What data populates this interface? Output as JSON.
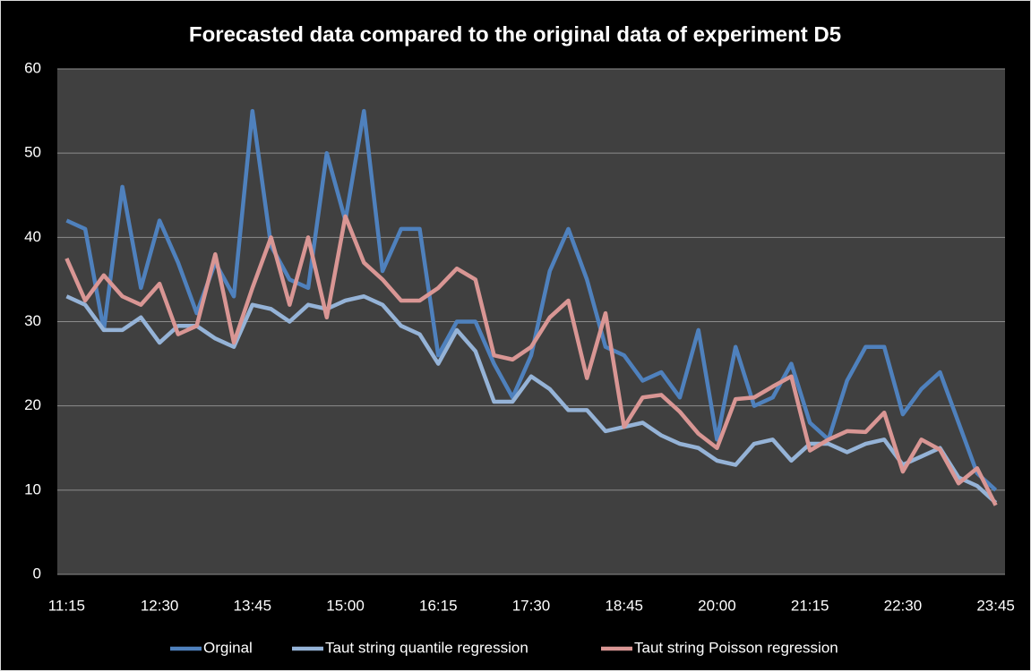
{
  "chart_data": {
    "type": "line",
    "title": "Forecasted data compared to the original data of experiment D5",
    "categories": [
      "11:15",
      null,
      null,
      null,
      null,
      "12:30",
      null,
      null,
      null,
      null,
      "13:45",
      null,
      null,
      null,
      null,
      "15:00",
      null,
      null,
      null,
      null,
      "16:15",
      null,
      null,
      null,
      null,
      "17:30",
      null,
      null,
      null,
      null,
      "18:45",
      null,
      null,
      null,
      null,
      "20:00",
      null,
      null,
      null,
      null,
      "21:15",
      null,
      null,
      null,
      null,
      "22:30",
      null,
      null,
      null,
      null,
      "23:45"
    ],
    "series": [
      {
        "name": "Orginal",
        "color": "#4f81bd",
        "values": [
          42,
          41,
          29,
          46,
          34,
          42,
          37,
          31,
          37,
          33,
          55,
          39,
          35,
          34,
          50,
          42,
          55,
          36,
          41,
          41,
          26,
          30,
          30,
          25,
          21,
          26,
          36,
          41,
          35,
          27,
          26,
          23,
          24,
          21,
          29,
          16,
          27,
          20,
          21,
          25,
          18,
          16,
          23,
          27,
          27,
          19,
          22,
          24,
          18,
          12,
          10
        ]
      },
      {
        "name": "Taut string quantile regression",
        "color": "#95b3d7",
        "values": [
          33,
          32,
          29,
          29,
          30.5,
          27.5,
          29.5,
          29.5,
          28,
          27,
          32,
          31.5,
          30,
          32,
          31.5,
          32.5,
          33,
          32,
          29.5,
          28.5,
          25,
          29,
          26.5,
          20.5,
          20.5,
          23.5,
          22,
          19.5,
          19.5,
          17,
          17.5,
          18,
          16.5,
          15.5,
          15,
          13.5,
          13,
          15.5,
          16,
          13.5,
          15.5,
          15.5,
          14.5,
          15.5,
          16,
          13,
          14,
          15,
          11.5,
          10.5,
          8.5
        ]
      },
      {
        "name": "Taut string Poisson regression",
        "color": "#d99694",
        "values": [
          37.5,
          32.5,
          35.5,
          33,
          32,
          34.5,
          28.5,
          29.5,
          38,
          27.5,
          34,
          40,
          32,
          40,
          30.5,
          42.5,
          37,
          35,
          32.5,
          32.5,
          34,
          36.3,
          35,
          26,
          25.5,
          27,
          30.5,
          32.5,
          23.3,
          31,
          17.5,
          21,
          21.3,
          19.3,
          16.7,
          15,
          20.8,
          21,
          22.3,
          23.5,
          14.7,
          16,
          17,
          16.9,
          19.2,
          12.2,
          16,
          14.8,
          10.8,
          12.6,
          8.2
        ]
      }
    ],
    "ylim": [
      0,
      60
    ],
    "yticks": [
      0,
      10,
      20,
      30,
      40,
      50,
      60
    ],
    "grid": true,
    "legend": "bottom"
  }
}
